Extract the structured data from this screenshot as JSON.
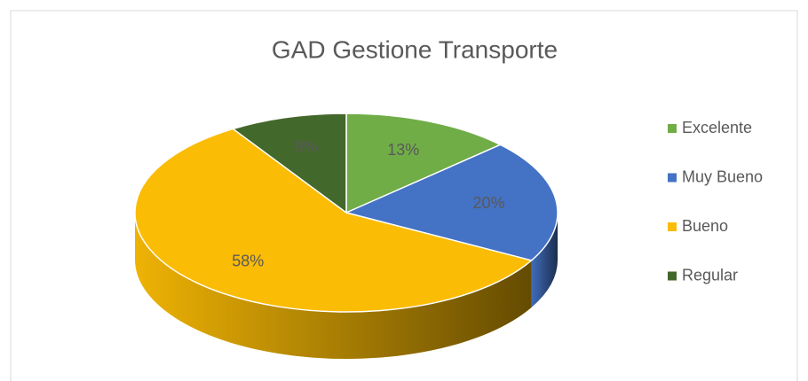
{
  "chart_data": {
    "type": "pie",
    "title": "GAD Gestione  Transporte",
    "categories": [
      "Excelente",
      "Muy Bueno",
      "Bueno",
      "Regular"
    ],
    "values": [
      13,
      20,
      58,
      9
    ],
    "value_labels": [
      "13%",
      "20%",
      "58%",
      "9%"
    ],
    "colors": [
      "#70ad47",
      "#4472c4",
      "#fbbc05",
      "#43682b"
    ],
    "legend": "right"
  }
}
